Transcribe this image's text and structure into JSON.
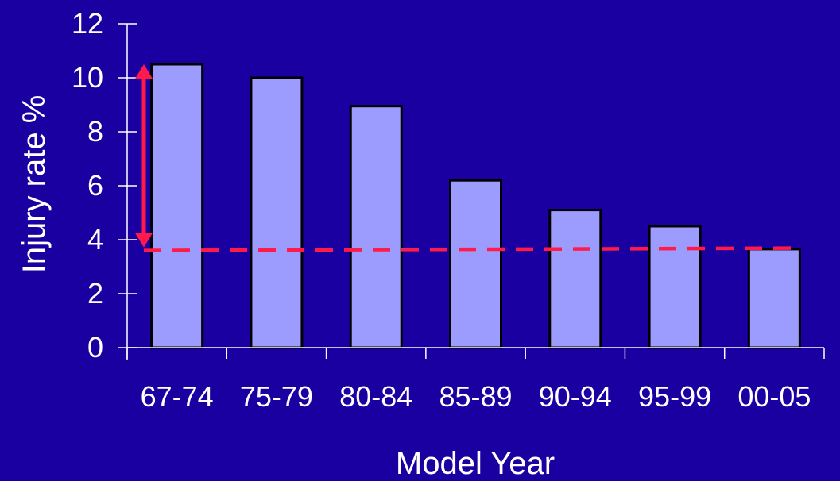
{
  "chart_data": {
    "type": "bar",
    "categories": [
      "67-74",
      "75-79",
      "80-84",
      "85-89",
      "90-94",
      "95-99",
      "00-05"
    ],
    "values": [
      10.5,
      10.0,
      8.95,
      6.2,
      5.1,
      4.5,
      3.65
    ],
    "xlabel": "Model Year",
    "ylabel": "Injury rate %",
    "ylim": [
      0,
      12
    ],
    "yticks": [
      0,
      2,
      4,
      6,
      8,
      10,
      12
    ],
    "grid": false,
    "reference_line": {
      "value": 3.6,
      "style": "dashed",
      "color": "#FF1A4A"
    },
    "difference_arrow": {
      "from": 10.5,
      "to": 3.6,
      "color": "#FF1A4A"
    },
    "colors": {
      "background": "#1A00A0",
      "bar_fill": "#9C9CFF",
      "bar_stroke": "#000000",
      "axis": "#FFFFFF",
      "text": "#FFFFFF",
      "accent": "#FF1A4A"
    }
  }
}
